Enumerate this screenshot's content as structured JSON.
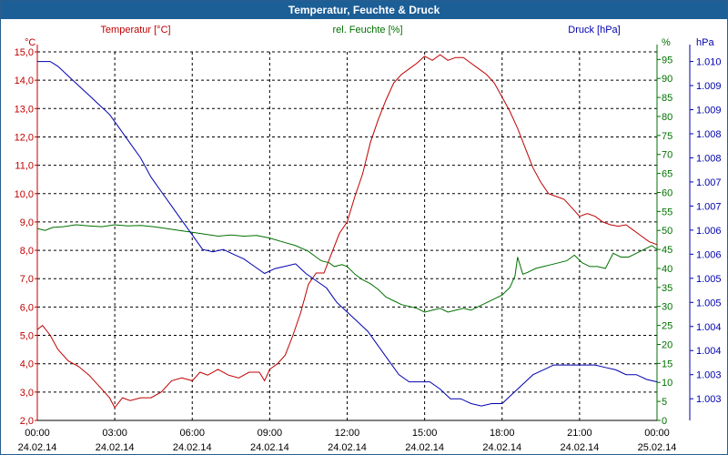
{
  "window": {
    "title": "Temperatur, Feuchte & Druck"
  },
  "colors": {
    "temperature": "#c00000",
    "humidity": "#007000",
    "pressure": "#0000b0",
    "grid": "#000000",
    "titlebar": "#1c5e96"
  },
  "chart_data": {
    "type": "line",
    "title": "Temperatur, Feuchte & Druck",
    "x_ticks": [
      {
        "time": "00:00",
        "date": "24.02.14"
      },
      {
        "time": "03:00",
        "date": "24.02.14"
      },
      {
        "time": "06:00",
        "date": "24.02.14"
      },
      {
        "time": "09:00",
        "date": "24.02.14"
      },
      {
        "time": "12:00",
        "date": "24.02.14"
      },
      {
        "time": "15:00",
        "date": "24.02.14"
      },
      {
        "time": "18:00",
        "date": "24.02.14"
      },
      {
        "time": "21:00",
        "date": "24.02.14"
      },
      {
        "time": "00:00",
        "date": "25.02.14"
      }
    ],
    "xlim": [
      0,
      24
    ],
    "axes": {
      "temperature": {
        "label": "Temperatur [°C]",
        "unit": "°C",
        "ylim": [
          2.0,
          15.0
        ],
        "ticks": [
          "2,0",
          "3,0",
          "4,0",
          "5,0",
          "6,0",
          "7,0",
          "8,0",
          "9,0",
          "10,0",
          "11,0",
          "12,0",
          "13,0",
          "14,0",
          "15,0"
        ]
      },
      "humidity": {
        "label": "rel. Feuchte [%]",
        "unit": "%",
        "ylim": [
          0,
          97
        ],
        "ticks": [
          "0",
          "5",
          "10",
          "15",
          "20",
          "25",
          "30",
          "35",
          "40",
          "45",
          "50",
          "55",
          "60",
          "65",
          "70",
          "75",
          "80",
          "85",
          "90",
          "95"
        ]
      },
      "pressure": {
        "label": "Druck [hPa]",
        "unit": "hPa",
        "ylim": [
          1002.55,
          1010.2
        ],
        "ticks": [
          {
            "label": "1.003",
            "value": 1003.0
          },
          {
            "label": "1.003",
            "value": 1003.5
          },
          {
            "label": "1.004",
            "value": 1004.0
          },
          {
            "label": "1.004",
            "value": 1004.5
          },
          {
            "label": "1.005",
            "value": 1005.0
          },
          {
            "label": "1.005",
            "value": 1005.5
          },
          {
            "label": "1.006",
            "value": 1006.0
          },
          {
            "label": "1.006",
            "value": 1006.5
          },
          {
            "label": "1.007",
            "value": 1007.0
          },
          {
            "label": "1.007",
            "value": 1007.5
          },
          {
            "label": "1.008",
            "value": 1008.0
          },
          {
            "label": "1.008",
            "value": 1008.5
          },
          {
            "label": "1.009",
            "value": 1009.0
          },
          {
            "label": "1.009",
            "value": 1009.5
          },
          {
            "label": "1.010",
            "value": 1010.0
          }
        ]
      }
    },
    "series": [
      {
        "name": "Temperatur",
        "axis": "temperature",
        "points": [
          [
            0,
            5.2
          ],
          [
            0.2,
            5.35
          ],
          [
            0.5,
            5.0
          ],
          [
            0.8,
            4.5
          ],
          [
            1.2,
            4.1
          ],
          [
            1.6,
            3.9
          ],
          [
            2.0,
            3.6
          ],
          [
            2.4,
            3.2
          ],
          [
            2.8,
            2.8
          ],
          [
            3.0,
            2.45
          ],
          [
            3.3,
            2.8
          ],
          [
            3.6,
            2.7
          ],
          [
            4.0,
            2.8
          ],
          [
            4.4,
            2.8
          ],
          [
            4.8,
            3.0
          ],
          [
            5.2,
            3.4
          ],
          [
            5.6,
            3.5
          ],
          [
            6.0,
            3.4
          ],
          [
            6.3,
            3.7
          ],
          [
            6.6,
            3.6
          ],
          [
            7.0,
            3.8
          ],
          [
            7.4,
            3.6
          ],
          [
            7.8,
            3.5
          ],
          [
            8.2,
            3.7
          ],
          [
            8.6,
            3.7
          ],
          [
            8.8,
            3.4
          ],
          [
            9.0,
            3.8
          ],
          [
            9.3,
            4.0
          ],
          [
            9.6,
            4.3
          ],
          [
            9.9,
            5.0
          ],
          [
            10.2,
            5.8
          ],
          [
            10.5,
            6.8
          ],
          [
            10.8,
            7.2
          ],
          [
            11.1,
            7.2
          ],
          [
            11.4,
            7.9
          ],
          [
            11.7,
            8.6
          ],
          [
            12.0,
            9.0
          ],
          [
            12.3,
            9.9
          ],
          [
            12.6,
            10.7
          ],
          [
            12.9,
            11.8
          ],
          [
            13.2,
            12.6
          ],
          [
            13.5,
            13.3
          ],
          [
            13.8,
            13.9
          ],
          [
            14.1,
            14.2
          ],
          [
            14.4,
            14.4
          ],
          [
            14.7,
            14.6
          ],
          [
            15.0,
            14.85
          ],
          [
            15.3,
            14.7
          ],
          [
            15.6,
            14.9
          ],
          [
            15.9,
            14.7
          ],
          [
            16.2,
            14.8
          ],
          [
            16.5,
            14.8
          ],
          [
            16.8,
            14.6
          ],
          [
            17.1,
            14.4
          ],
          [
            17.4,
            14.2
          ],
          [
            17.7,
            13.9
          ],
          [
            18.0,
            13.4
          ],
          [
            18.3,
            12.9
          ],
          [
            18.6,
            12.3
          ],
          [
            18.9,
            11.6
          ],
          [
            19.2,
            10.9
          ],
          [
            19.5,
            10.4
          ],
          [
            19.8,
            10.0
          ],
          [
            20.1,
            9.9
          ],
          [
            20.4,
            9.8
          ],
          [
            20.7,
            9.5
          ],
          [
            21.0,
            9.2
          ],
          [
            21.3,
            9.3
          ],
          [
            21.6,
            9.2
          ],
          [
            21.9,
            9.0
          ],
          [
            22.2,
            8.9
          ],
          [
            22.5,
            8.85
          ],
          [
            22.8,
            8.9
          ],
          [
            23.1,
            8.7
          ],
          [
            23.4,
            8.5
          ],
          [
            23.7,
            8.3
          ],
          [
            24.0,
            8.2
          ]
        ]
      },
      {
        "name": "rel. Feuchte",
        "axis": "humidity",
        "points": [
          [
            0,
            50.5
          ],
          [
            0.3,
            50
          ],
          [
            0.6,
            50.8
          ],
          [
            1.0,
            51
          ],
          [
            1.5,
            51.5
          ],
          [
            2.0,
            51.2
          ],
          [
            2.5,
            51
          ],
          [
            3.0,
            51.5
          ],
          [
            3.5,
            51.2
          ],
          [
            4.0,
            51.3
          ],
          [
            4.5,
            51
          ],
          [
            5.0,
            50.5
          ],
          [
            5.5,
            50
          ],
          [
            6.0,
            49.5
          ],
          [
            6.5,
            49
          ],
          [
            7.0,
            48.5
          ],
          [
            7.5,
            48.8
          ],
          [
            8.0,
            48.5
          ],
          [
            8.5,
            48.7
          ],
          [
            9.0,
            48
          ],
          [
            9.5,
            47
          ],
          [
            10.0,
            46
          ],
          [
            10.5,
            44.5
          ],
          [
            10.8,
            43
          ],
          [
            11.0,
            42
          ],
          [
            11.3,
            41.5
          ],
          [
            11.5,
            40.5
          ],
          [
            11.8,
            41
          ],
          [
            12.0,
            40.5
          ],
          [
            12.3,
            38.5
          ],
          [
            12.6,
            37
          ],
          [
            12.9,
            36
          ],
          [
            13.2,
            34.5
          ],
          [
            13.5,
            32.5
          ],
          [
            13.8,
            31.5
          ],
          [
            14.1,
            30.5
          ],
          [
            14.4,
            30
          ],
          [
            14.7,
            29.5
          ],
          [
            15.0,
            28.5
          ],
          [
            15.3,
            29
          ],
          [
            15.6,
            29.5
          ],
          [
            15.9,
            28.5
          ],
          [
            16.2,
            29
          ],
          [
            16.5,
            29.5
          ],
          [
            16.8,
            29
          ],
          [
            17.1,
            30
          ],
          [
            17.4,
            31
          ],
          [
            17.7,
            32
          ],
          [
            18.0,
            33
          ],
          [
            18.3,
            35
          ],
          [
            18.5,
            38
          ],
          [
            18.6,
            43
          ],
          [
            18.8,
            38.5
          ],
          [
            19.0,
            39
          ],
          [
            19.3,
            40
          ],
          [
            19.6,
            40.5
          ],
          [
            19.9,
            41
          ],
          [
            20.2,
            41.5
          ],
          [
            20.5,
            42
          ],
          [
            20.8,
            43.5
          ],
          [
            21.1,
            41.5
          ],
          [
            21.4,
            40.5
          ],
          [
            21.7,
            40.5
          ],
          [
            22.0,
            40
          ],
          [
            22.3,
            44
          ],
          [
            22.6,
            43
          ],
          [
            22.9,
            43
          ],
          [
            23.2,
            44
          ],
          [
            23.5,
            45
          ],
          [
            23.8,
            46
          ],
          [
            24.0,
            45
          ]
        ]
      },
      {
        "name": "Druck",
        "axis": "pressure",
        "points": [
          [
            0,
            1010.0
          ],
          [
            0.5,
            1010.0
          ],
          [
            0.8,
            1009.9
          ],
          [
            1.2,
            1009.7
          ],
          [
            1.6,
            1009.5
          ],
          [
            2.0,
            1009.3
          ],
          [
            2.4,
            1009.1
          ],
          [
            2.8,
            1008.9
          ],
          [
            3.2,
            1008.6
          ],
          [
            3.6,
            1008.3
          ],
          [
            4.0,
            1008.0
          ],
          [
            4.4,
            1007.6
          ],
          [
            4.8,
            1007.3
          ],
          [
            5.2,
            1007.0
          ],
          [
            5.6,
            1006.7
          ],
          [
            6.0,
            1006.4
          ],
          [
            6.4,
            1006.1
          ],
          [
            6.8,
            1006.05
          ],
          [
            7.2,
            1006.1
          ],
          [
            7.6,
            1006.0
          ],
          [
            8.0,
            1005.9
          ],
          [
            8.4,
            1005.75
          ],
          [
            8.8,
            1005.6
          ],
          [
            9.2,
            1005.7
          ],
          [
            9.6,
            1005.75
          ],
          [
            10.0,
            1005.8
          ],
          [
            10.4,
            1005.6
          ],
          [
            10.8,
            1005.45
          ],
          [
            11.2,
            1005.3
          ],
          [
            11.6,
            1005.0
          ],
          [
            12.0,
            1004.8
          ],
          [
            12.4,
            1004.6
          ],
          [
            12.8,
            1004.4
          ],
          [
            13.2,
            1004.1
          ],
          [
            13.6,
            1003.8
          ],
          [
            14.0,
            1003.5
          ],
          [
            14.4,
            1003.35
          ],
          [
            14.8,
            1003.35
          ],
          [
            15.2,
            1003.35
          ],
          [
            15.6,
            1003.2
          ],
          [
            16.0,
            1003.0
          ],
          [
            16.4,
            1003.0
          ],
          [
            16.8,
            1002.9
          ],
          [
            17.2,
            1002.85
          ],
          [
            17.6,
            1002.9
          ],
          [
            18.0,
            1002.9
          ],
          [
            18.4,
            1003.1
          ],
          [
            18.8,
            1003.3
          ],
          [
            19.2,
            1003.5
          ],
          [
            19.6,
            1003.6
          ],
          [
            20.0,
            1003.7
          ],
          [
            20.4,
            1003.7
          ],
          [
            20.8,
            1003.7
          ],
          [
            21.2,
            1003.7
          ],
          [
            21.6,
            1003.7
          ],
          [
            22.0,
            1003.65
          ],
          [
            22.4,
            1003.6
          ],
          [
            22.8,
            1003.5
          ],
          [
            23.2,
            1003.5
          ],
          [
            23.6,
            1003.4
          ],
          [
            24.0,
            1003.35
          ]
        ]
      }
    ]
  }
}
